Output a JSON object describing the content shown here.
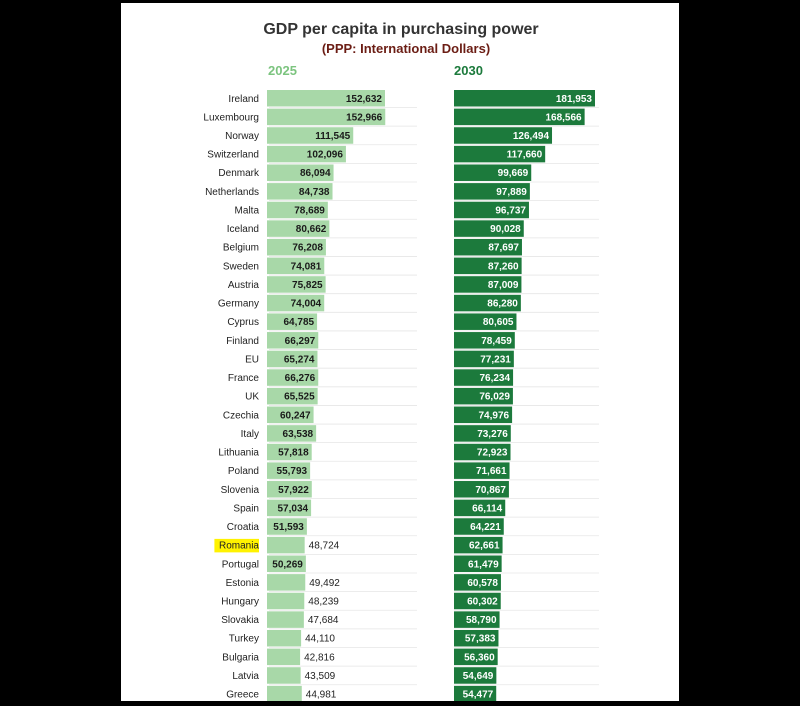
{
  "chart_data": {
    "type": "bar",
    "title": "GDP per capita in purchasing power",
    "subtitle": "(PPP: International Dollars)",
    "categories": [
      "Ireland",
      "Luxembourg",
      "Norway",
      "Switzerland",
      "Denmark",
      "Netherlands",
      "Malta",
      "Iceland",
      "Belgium",
      "Sweden",
      "Austria",
      "Germany",
      "Cyprus",
      "Finland",
      "EU",
      "France",
      "UK",
      "Czechia",
      "Italy",
      "Lithuania",
      "Poland",
      "Slovenia",
      "Spain",
      "Croatia",
      "Romania",
      "Portugal",
      "Estonia",
      "Hungary",
      "Slovakia",
      "Turkey",
      "Bulgaria",
      "Latvia",
      "Greece"
    ],
    "highlight": "Romania",
    "series": [
      {
        "name": "2025",
        "values": [
          152632,
          152966,
          111545,
          102096,
          86094,
          84738,
          78689,
          80662,
          76208,
          74081,
          75825,
          74004,
          64785,
          66297,
          65274,
          66276,
          65525,
          60247,
          63538,
          57818,
          55793,
          57922,
          57034,
          51593,
          48724,
          50269,
          49492,
          48239,
          47684,
          44110,
          42816,
          43509,
          44981
        ],
        "labels": [
          "152,632",
          "152,966",
          "111,545",
          "102,096",
          "86,094",
          "84,738",
          "78,689",
          "80,662",
          "76,208",
          "74,081",
          "75,825",
          "74,004",
          "64,785",
          "66,297",
          "65,274",
          "66,276",
          "65,525",
          "60,247",
          "63,538",
          "57,818",
          "55,793",
          "57,922",
          "57,034",
          "51,593",
          "48,724",
          "50,269",
          "49,492",
          "48,239",
          "47,684",
          "44,110",
          "42,816",
          "43,509",
          "44,981"
        ]
      },
      {
        "name": "2030",
        "values": [
          181953,
          168566,
          126494,
          117660,
          99669,
          97889,
          96737,
          90028,
          87697,
          87260,
          87009,
          86280,
          80605,
          78459,
          77231,
          76234,
          76029,
          74976,
          73276,
          72923,
          71661,
          70867,
          66114,
          64221,
          62661,
          61479,
          60578,
          60302,
          58790,
          57383,
          56360,
          54649,
          54477
        ],
        "labels": [
          "181,953",
          "168,566",
          "126,494",
          "117,660",
          "99,669",
          "97,889",
          "96,737",
          "90,028",
          "87,697",
          "87,260",
          "87,009",
          "86,280",
          "80,605",
          "78,459",
          "77,231",
          "76,234",
          "76,029",
          "74,976",
          "73,276",
          "72,923",
          "71,661",
          "70,867",
          "66,114",
          "64,221",
          "62,661",
          "61,479",
          "60,578",
          "60,302",
          "58,790",
          "57,383",
          "56,360",
          "54,649",
          "54,477"
        ]
      }
    ],
    "colors": {
      "bar_2025": "#a8d8a8",
      "bar_2030": "#1c7a3c",
      "year_2025": "#7cc47f",
      "year_2030": "#1c7a3c",
      "highlight": "#fff200",
      "text_2025": "#1a1a1a",
      "text_2030": "#ffffff"
    }
  }
}
